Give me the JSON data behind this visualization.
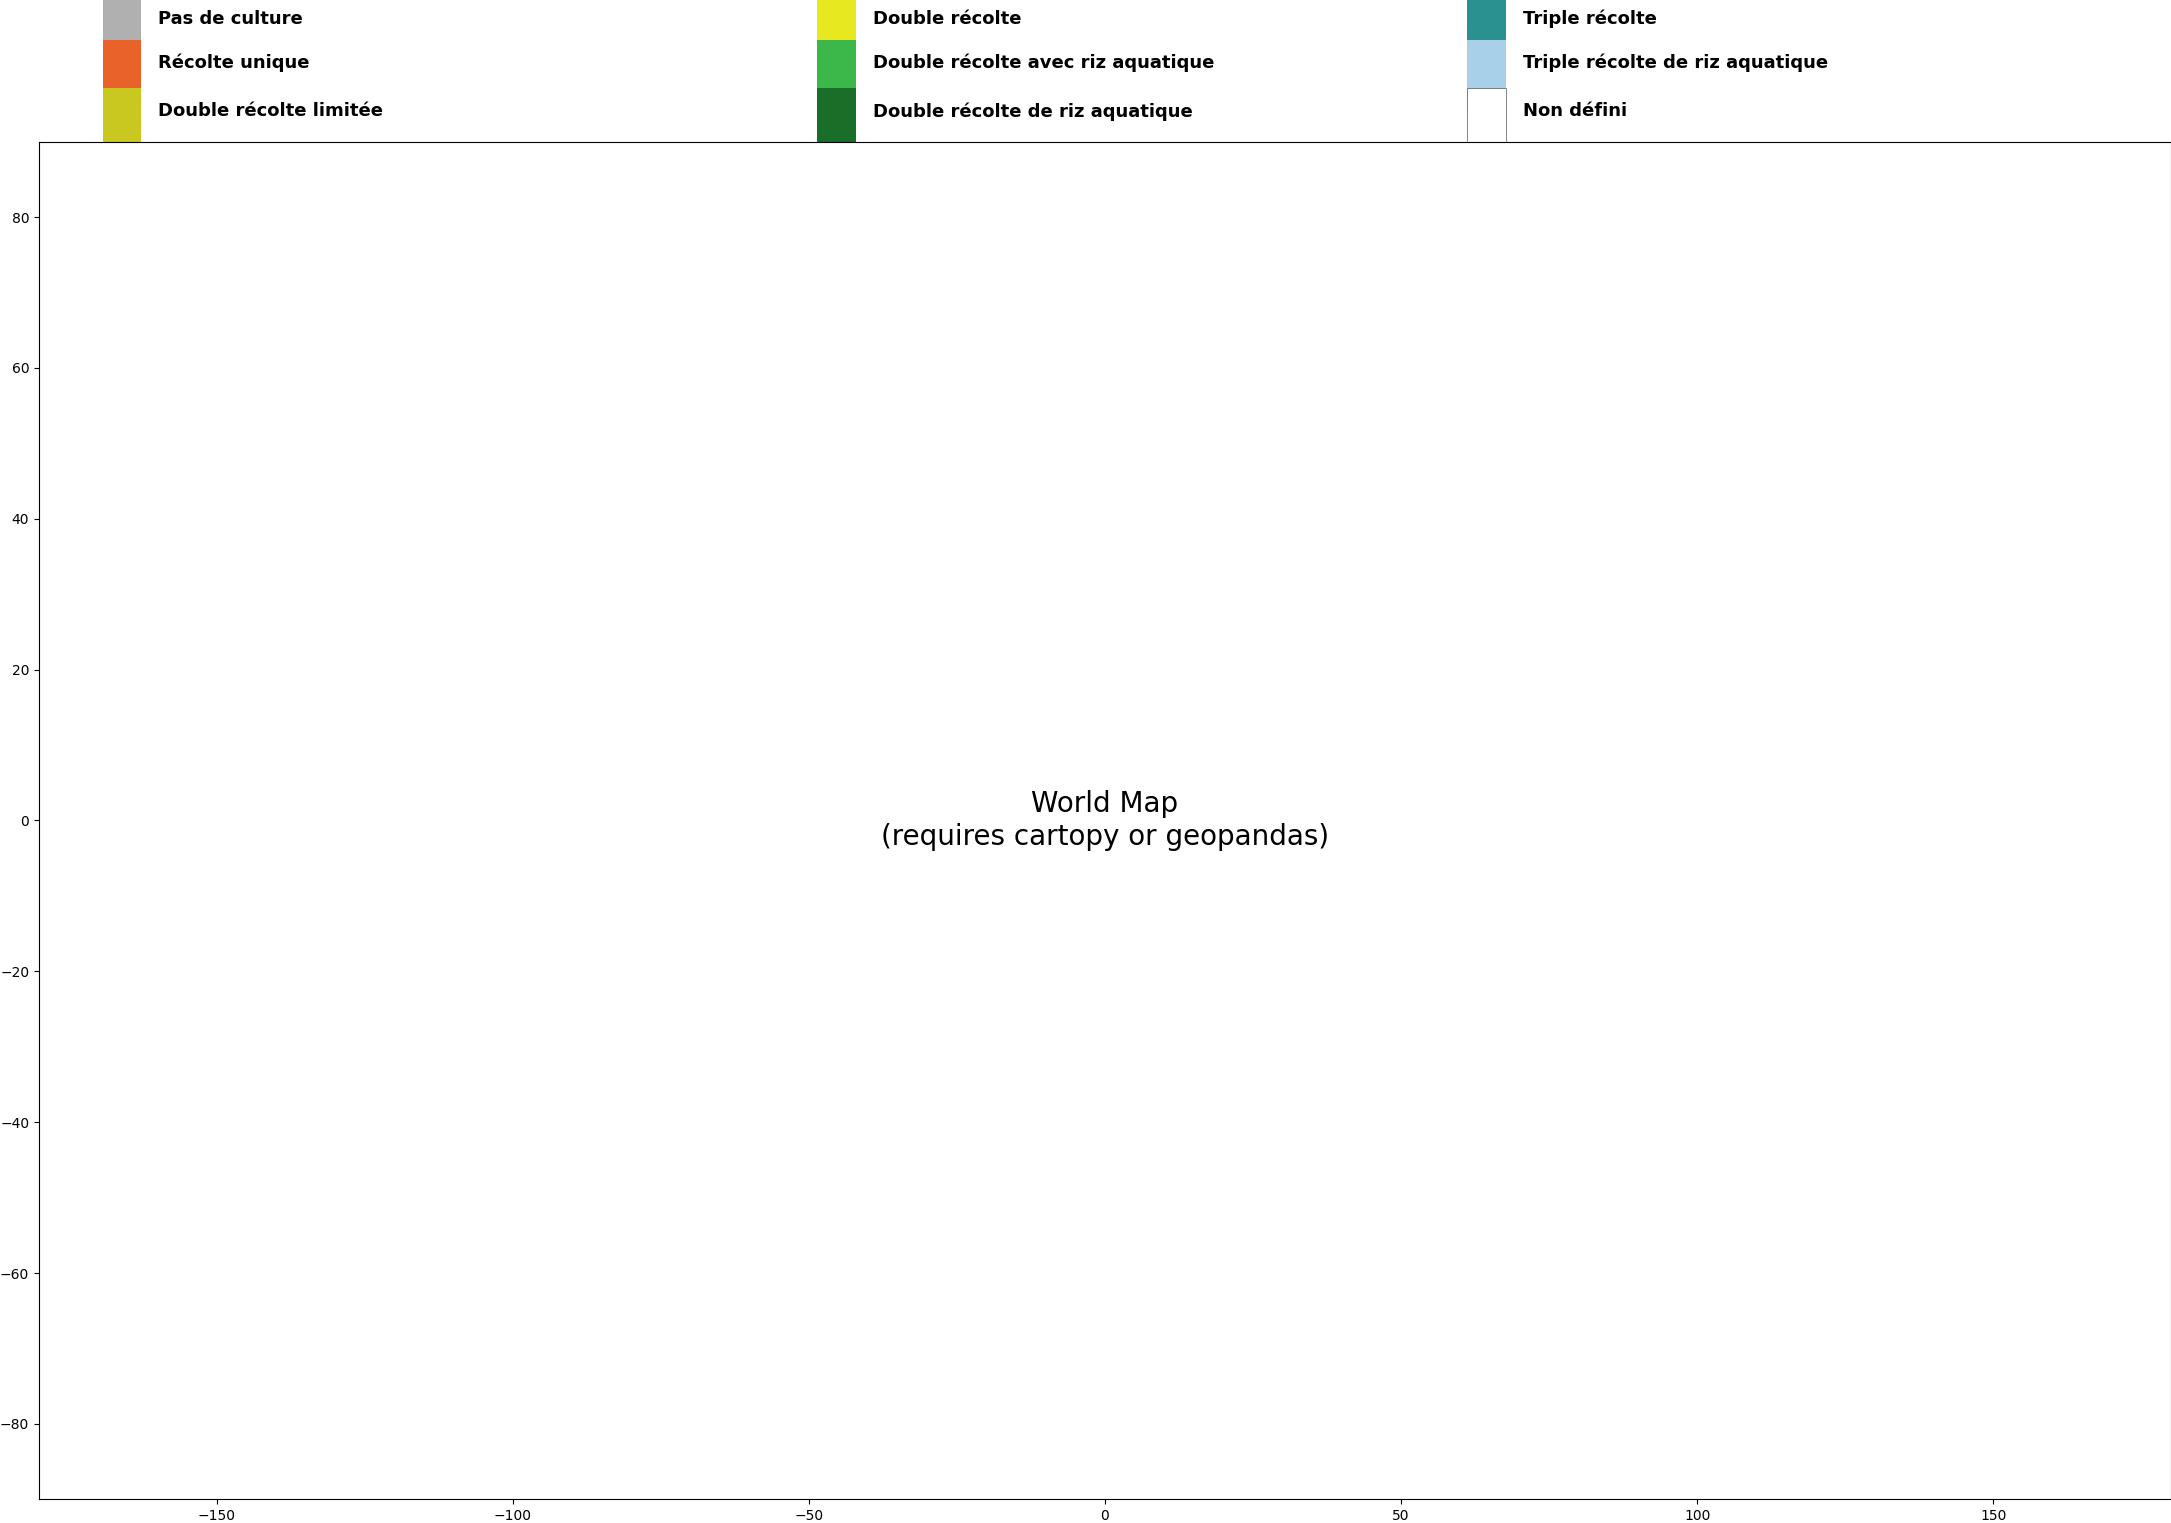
{
  "title": "",
  "legend_items": [
    {
      "label": "Pas de culture",
      "color": "#b0b0b0"
    },
    {
      "label": "Double récolte",
      "color": "#e8e800"
    },
    {
      "label": "Triple récolte",
      "color": "#2a9090"
    },
    {
      "label": "Récolte unique",
      "color": "#e8622a"
    },
    {
      "label": "Double récolte avec riz aquatique",
      "color": "#3cb84a"
    },
    {
      "label": "Triple récolte de riz aquatique",
      "color": "#a8d0e8"
    },
    {
      "label": "Double récolte limitée",
      "color": "#d4d400"
    },
    {
      "label": "Double récolte de riz aquatique",
      "color": "#1a6e28"
    },
    {
      "label": "Non défini",
      "color": "#ffffff"
    }
  ],
  "legend_row1": [
    {
      "label": "Pas de culture",
      "color": "#b0b0b0"
    },
    {
      "label": "Double récolte",
      "color": "#e8e820"
    },
    {
      "label": "Triple récolte",
      "color": "#2a9090"
    }
  ],
  "legend_row2": [
    {
      "label": "Récolte unique",
      "color": "#e8622a"
    },
    {
      "label": "Double récolte avec riz aquatique",
      "color": "#3cb84a"
    },
    {
      "label": "Triple récolte de riz aquatique",
      "color": "#a8d0e8"
    }
  ],
  "legend_row3": [
    {
      "label": "Double récolte limitée",
      "color": "#c8c820"
    },
    {
      "label": "Double récolte de riz aquatique",
      "color": "#1a6e28"
    },
    {
      "label": "Non défini",
      "color": "#ffffff"
    }
  ],
  "background_color": "#ffffff",
  "map_background": "#ffffff",
  "ocean_color": "#ffffff",
  "border_color": "#000000"
}
